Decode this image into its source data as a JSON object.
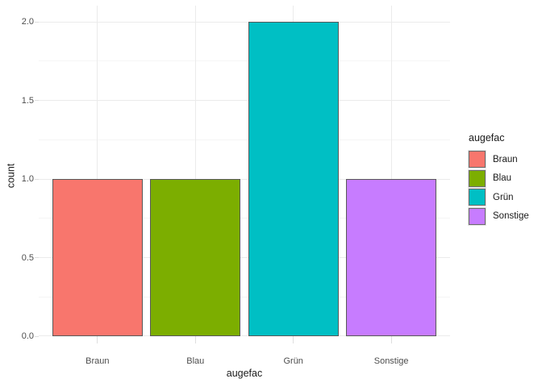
{
  "chart_data": {
    "type": "bar",
    "title": "",
    "categories": [
      "Braun",
      "Blau",
      "Grün",
      "Sonstige"
    ],
    "values": [
      1,
      1,
      2,
      1
    ],
    "bar_colors": [
      "#F8766D",
      "#7CAE00",
      "#00BFC4",
      "#C77CFF"
    ],
    "bar_border_color": "#595959",
    "xlabel": "augefac",
    "ylabel": "count",
    "ylim": [
      0,
      2.1
    ],
    "yticks": [
      0,
      0.5,
      1,
      1.5,
      2
    ],
    "ytick_labels": [
      "0.0",
      "0.5",
      "1.0",
      "1.5",
      "2.0"
    ],
    "yminor_ticks": [
      0.25,
      0.75,
      1.25,
      1.75
    ],
    "grid": true,
    "legend": {
      "title": "augefac",
      "position": "right",
      "entries": [
        {
          "label": "Braun",
          "color": "#F8766D"
        },
        {
          "label": "Blau",
          "color": "#7CAE00"
        },
        {
          "label": "Grün",
          "color": "#00BFC4"
        },
        {
          "label": "Sonstige",
          "color": "#C77CFF"
        }
      ]
    }
  },
  "colors": {
    "background": "#FFFFFF",
    "grid_major": "#EBEBEB",
    "grid_minor": "#F5F5F5",
    "tick": "#DEDEDE",
    "axis_text": "#4D4D4D",
    "axis_title": "#1A1A1A"
  }
}
